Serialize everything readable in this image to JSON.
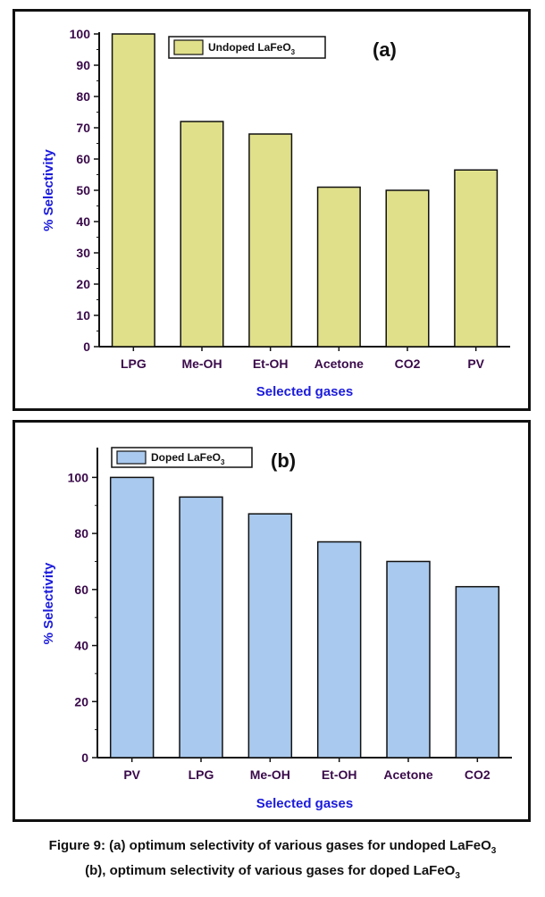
{
  "chart_data": [
    {
      "type": "bar",
      "panel_label": "(a)",
      "legend": {
        "text": "Undoped LaFeO",
        "subscript": "3"
      },
      "categories": [
        "LPG",
        "Me-OH",
        "Et-OH",
        "Acetone",
        "CO2",
        "PV"
      ],
      "values": [
        100,
        72,
        68,
        51,
        50,
        56.5
      ],
      "ylabel": "% Selectivity",
      "xlabel": "Selected gases",
      "ylim": [
        0,
        100
      ],
      "yticks": [
        0,
        10,
        20,
        30,
        40,
        50,
        60,
        70,
        80,
        90,
        100
      ],
      "bar_color": "#e0e08a"
    },
    {
      "type": "bar",
      "panel_label": "(b)",
      "legend": {
        "text": "Doped LaFeO",
        "subscript": "3"
      },
      "categories": [
        "PV",
        "LPG",
        "Me-OH",
        "Et-OH",
        "Acetone",
        "CO2"
      ],
      "values": [
        100,
        93,
        87,
        77,
        70,
        61
      ],
      "ylabel": "% Selectivity",
      "xlabel": "Selected gases",
      "ylim": [
        0,
        110
      ],
      "yticks": [
        0,
        20,
        40,
        60,
        80,
        100
      ],
      "bar_color": "#a9c9ee"
    }
  ],
  "caption": {
    "line1_text": "Figure 9: (a) optimum selectivity of various gases for undoped LaFeO",
    "line1_sub": "3",
    "line2_text": "(b), optimum selectivity of various gases for doped LaFeO",
    "line2_sub": "3"
  }
}
